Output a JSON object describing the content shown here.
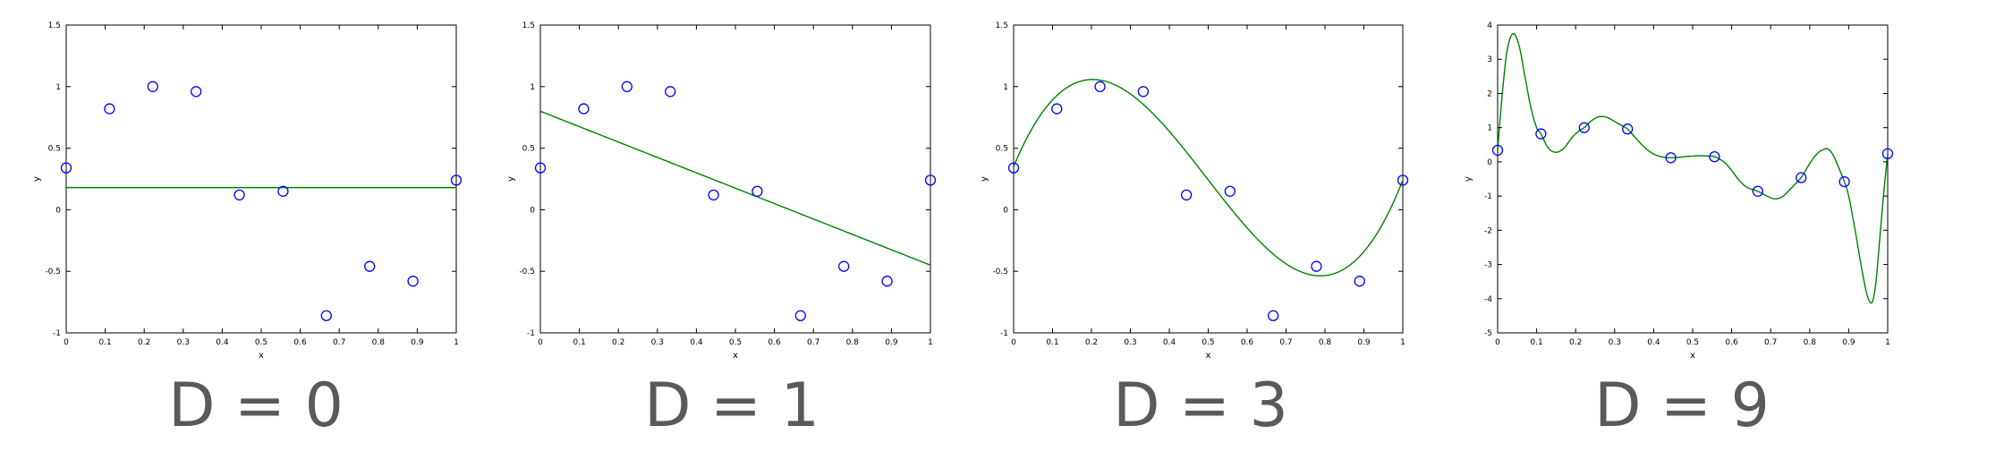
{
  "chart_data": [
    {
      "type": "scatter",
      "caption": "D = 0",
      "xlabel": "x",
      "ylabel": "y",
      "xlim": [
        0,
        1
      ],
      "ylim": [
        -1,
        1.5
      ],
      "xticks": [
        0,
        0.1,
        0.2,
        0.3,
        0.4,
        0.5,
        0.6,
        0.7,
        0.8,
        0.9,
        1
      ],
      "xticklabels": [
        "0",
        "0.1",
        "0.2",
        "0.3",
        "0.4",
        "0.5",
        "0.6",
        "0.7",
        "0.8",
        "0.9",
        "1"
      ],
      "yticks": [
        -1,
        -0.5,
        0,
        0.5,
        1,
        1.5
      ],
      "yticklabels": [
        "-1",
        "-0.5",
        "0",
        "0.5",
        "1",
        "1.5"
      ],
      "points": {
        "x": [
          0,
          0.111,
          0.222,
          0.333,
          0.444,
          0.556,
          0.667,
          0.778,
          0.889,
          1
        ],
        "y": [
          0.34,
          0.82,
          1.0,
          0.96,
          0.12,
          0.15,
          -0.86,
          -0.46,
          -0.58,
          0.24
        ]
      },
      "fit_coefficients": [
        0.18
      ],
      "colors": {
        "points": "#0000ff",
        "fit": "#008000"
      }
    },
    {
      "type": "scatter",
      "caption": "D = 1",
      "xlabel": "x",
      "ylabel": "y",
      "xlim": [
        0,
        1
      ],
      "ylim": [
        -1,
        1.5
      ],
      "xticks": [
        0,
        0.1,
        0.2,
        0.3,
        0.4,
        0.5,
        0.6,
        0.7,
        0.8,
        0.9,
        1
      ],
      "xticklabels": [
        "0",
        "0.1",
        "0.2",
        "0.3",
        "0.4",
        "0.5",
        "0.6",
        "0.7",
        "0.8",
        "0.9",
        "1"
      ],
      "yticks": [
        -1,
        -0.5,
        0,
        0.5,
        1,
        1.5
      ],
      "yticklabels": [
        "-1",
        "-0.5",
        "0",
        "0.5",
        "1",
        "1.5"
      ],
      "points": {
        "x": [
          0,
          0.111,
          0.222,
          0.333,
          0.444,
          0.556,
          0.667,
          0.778,
          0.889,
          1
        ],
        "y": [
          0.34,
          0.82,
          1.0,
          0.96,
          0.12,
          0.15,
          -0.86,
          -0.46,
          -0.58,
          0.24
        ]
      },
      "fit_coefficients": [
        0.8,
        -1.25
      ],
      "colors": {
        "points": "#0000ff",
        "fit": "#008000"
      }
    },
    {
      "type": "scatter",
      "caption": "D = 3",
      "xlabel": "x",
      "ylabel": "y",
      "xlim": [
        0,
        1
      ],
      "ylim": [
        -1,
        1.5
      ],
      "xticks": [
        0,
        0.1,
        0.2,
        0.3,
        0.4,
        0.5,
        0.6,
        0.7,
        0.8,
        0.9,
        1
      ],
      "xticklabels": [
        "0",
        "0.1",
        "0.2",
        "0.3",
        "0.4",
        "0.5",
        "0.6",
        "0.7",
        "0.8",
        "0.9",
        "1"
      ],
      "yticks": [
        -1,
        -0.5,
        0,
        0.5,
        1,
        1.5
      ],
      "yticklabels": [
        "-1",
        "-0.5",
        "0",
        "0.5",
        "1",
        "1.5"
      ],
      "points": {
        "x": [
          0,
          0.111,
          0.222,
          0.333,
          0.444,
          0.556,
          0.667,
          0.778,
          0.889,
          1
        ],
        "y": [
          0.34,
          0.82,
          1.0,
          0.96,
          0.12,
          0.15,
          -0.86,
          -0.46,
          -0.58,
          0.24
        ]
      },
      "fit_coefficients": [
        0.35,
        7.63,
        -23.64,
        15.9
      ],
      "colors": {
        "points": "#0000ff",
        "fit": "#008000"
      }
    },
    {
      "type": "scatter",
      "caption": "D = 9",
      "xlabel": "x",
      "ylabel": "y",
      "xlim": [
        0,
        1
      ],
      "ylim": [
        -5,
        4
      ],
      "xticks": [
        0,
        0.1,
        0.2,
        0.3,
        0.4,
        0.5,
        0.6,
        0.7,
        0.8,
        0.9,
        1
      ],
      "xticklabels": [
        "0",
        "0.1",
        "0.2",
        "0.3",
        "0.4",
        "0.5",
        "0.6",
        "0.7",
        "0.8",
        "0.9",
        "1"
      ],
      "yticks": [
        -5,
        -4,
        -3,
        -2,
        -1,
        0,
        1,
        2,
        3,
        4
      ],
      "yticklabels": [
        "-5",
        "-4",
        "-3",
        "-2",
        "-1",
        "0",
        "1",
        "2",
        "3",
        "4"
      ],
      "points": {
        "x": [
          0,
          0.111,
          0.222,
          0.333,
          0.444,
          0.556,
          0.667,
          0.778,
          0.889,
          1
        ],
        "y": [
          0.34,
          0.82,
          1.0,
          0.96,
          0.12,
          0.15,
          -0.86,
          -0.46,
          -0.58,
          0.24
        ]
      },
      "fit_curve": {
        "x": [
          0,
          0.012,
          0.025,
          0.04,
          0.055,
          0.07,
          0.085,
          0.1,
          0.111,
          0.13,
          0.15,
          0.17,
          0.19,
          0.21,
          0.222,
          0.24,
          0.26,
          0.28,
          0.3,
          0.32,
          0.333,
          0.35,
          0.37,
          0.39,
          0.41,
          0.43,
          0.444,
          0.46,
          0.48,
          0.5,
          0.52,
          0.54,
          0.556,
          0.58,
          0.6,
          0.62,
          0.64,
          0.667,
          0.69,
          0.71,
          0.73,
          0.75,
          0.778,
          0.8,
          0.82,
          0.84,
          0.85,
          0.86,
          0.87,
          0.889,
          0.9,
          0.915,
          0.93,
          0.945,
          0.955,
          0.962,
          0.97,
          0.98,
          0.99,
          1
        ],
        "y": [
          0.34,
          2.0,
          3.3,
          3.75,
          3.4,
          2.5,
          1.6,
          1.0,
          0.82,
          0.4,
          0.28,
          0.4,
          0.7,
          0.92,
          1.0,
          1.2,
          1.32,
          1.3,
          1.18,
          1.05,
          0.96,
          0.75,
          0.5,
          0.3,
          0.18,
          0.13,
          0.12,
          0.13,
          0.15,
          0.17,
          0.18,
          0.17,
          0.15,
          0.0,
          -0.25,
          -0.55,
          -0.75,
          -0.86,
          -1.0,
          -1.08,
          -1.02,
          -0.8,
          -0.46,
          -0.05,
          0.25,
          0.38,
          0.35,
          0.2,
          -0.05,
          -0.58,
          -1.0,
          -1.9,
          -2.9,
          -3.8,
          -4.1,
          -4.05,
          -3.5,
          -2.2,
          -0.9,
          0.24
        ]
      },
      "colors": {
        "points": "#0000ff",
        "fit": "#008000"
      }
    }
  ]
}
